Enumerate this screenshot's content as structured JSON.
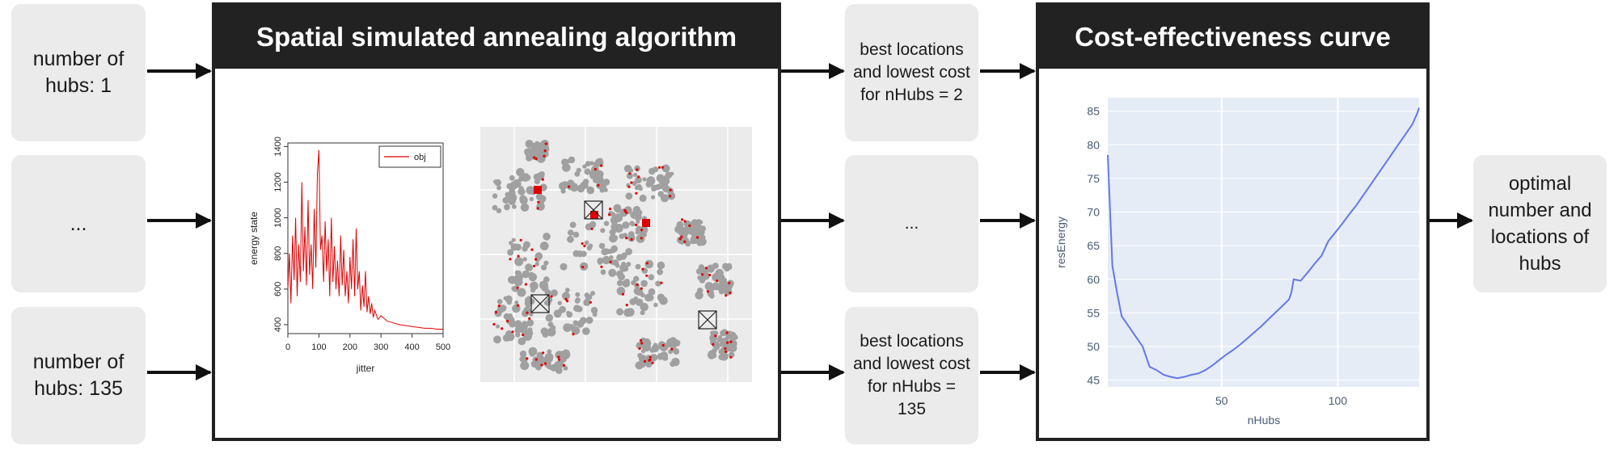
{
  "inputs": [
    {
      "text": "number of hubs: 1"
    },
    {
      "text": "..."
    },
    {
      "text": "number of hubs: 135"
    }
  ],
  "middle": [
    {
      "text": "best locations and lowest cost for nHubs = 2"
    },
    {
      "text": "..."
    },
    {
      "text": "best locations and lowest cost for nHubs = 135"
    }
  ],
  "output": {
    "text": "optimal number and locations of hubs"
  },
  "panels": {
    "ssa_title": "Spatial simulated annealing algorithm",
    "cec_title": "Cost-effectiveness curve"
  },
  "colors": {
    "header": "#222222",
    "box": "#ebebeb",
    "energy_line": "#dd0000",
    "curve_line": "#6378e8",
    "plot_bg": "#e5ecf6"
  },
  "chart_data": [
    {
      "type": "line",
      "xlabel": "jitter",
      "ylabel": "energy state",
      "xlim": [
        0,
        500
      ],
      "ylim": [
        350,
        1420
      ],
      "xticks": [
        0,
        100,
        200,
        300,
        400,
        500
      ],
      "yticks": [
        400,
        600,
        800,
        1000,
        1200,
        1400
      ],
      "legend": {
        "label": "obj",
        "position": "top-right"
      },
      "series": [
        {
          "name": "obj",
          "color": "#dd0000",
          "x": [
            0,
            5,
            10,
            15,
            20,
            25,
            30,
            35,
            40,
            45,
            50,
            55,
            60,
            65,
            70,
            75,
            80,
            85,
            90,
            95,
            100,
            105,
            110,
            115,
            120,
            125,
            130,
            135,
            140,
            145,
            150,
            155,
            160,
            165,
            170,
            175,
            180,
            185,
            190,
            195,
            200,
            205,
            210,
            215,
            220,
            225,
            230,
            235,
            240,
            245,
            250,
            255,
            260,
            265,
            270,
            275,
            280,
            290,
            300,
            320,
            340,
            360,
            380,
            400,
            420,
            440,
            460,
            480,
            500
          ],
          "y": [
            600,
            800,
            520,
            900,
            650,
            1000,
            560,
            850,
            640,
            1200,
            700,
            950,
            620,
            1100,
            680,
            850,
            600,
            1050,
            720,
            1250,
            1380,
            820,
            900,
            640,
            980,
            700,
            880,
            560,
            1000,
            640,
            840,
            600,
            760,
            560,
            900,
            620,
            820,
            560,
            700,
            520,
            780,
            600,
            880,
            560,
            940,
            600,
            700,
            480,
            620,
            500,
            700,
            470,
            560,
            460,
            520,
            440,
            480,
            430,
            450,
            420,
            410,
            400,
            395,
            390,
            385,
            380,
            380,
            375,
            375
          ]
        }
      ]
    },
    {
      "type": "line",
      "xlabel": "nHubs",
      "ylabel": "resEnergy",
      "xlim": [
        1,
        135
      ],
      "ylim": [
        44,
        87
      ],
      "xticks": [
        50,
        100
      ],
      "yticks": [
        45,
        50,
        55,
        60,
        65,
        70,
        75,
        80,
        85
      ],
      "grid": true,
      "series": [
        {
          "name": "resEnergy",
          "color": "#6378e8",
          "x": [
            1,
            2,
            3,
            5,
            7,
            10,
            13,
            16,
            19,
            22,
            25,
            28,
            31,
            34,
            37,
            40,
            43,
            46,
            49,
            52,
            55,
            58,
            61,
            64,
            67,
            70,
            73,
            76,
            79,
            80,
            81,
            84,
            87,
            90,
            93,
            96,
            99,
            102,
            105,
            108,
            111,
            114,
            117,
            120,
            123,
            126,
            129,
            132,
            134,
            135
          ],
          "y": [
            78.5,
            70,
            62,
            58,
            54.5,
            53,
            51.5,
            50,
            47,
            46.5,
            45.8,
            45.5,
            45.3,
            45.5,
            45.8,
            46,
            46.5,
            47.2,
            48,
            48.8,
            49.5,
            50.3,
            51.2,
            52.1,
            53,
            54,
            55,
            56,
            57,
            58,
            60,
            59.8,
            61,
            62.3,
            63.5,
            65.7,
            67,
            68.3,
            69.7,
            71,
            72.5,
            74,
            75.5,
            77,
            78.5,
            80,
            81.5,
            83,
            84.5,
            85.5
          ]
        }
      ]
    }
  ]
}
